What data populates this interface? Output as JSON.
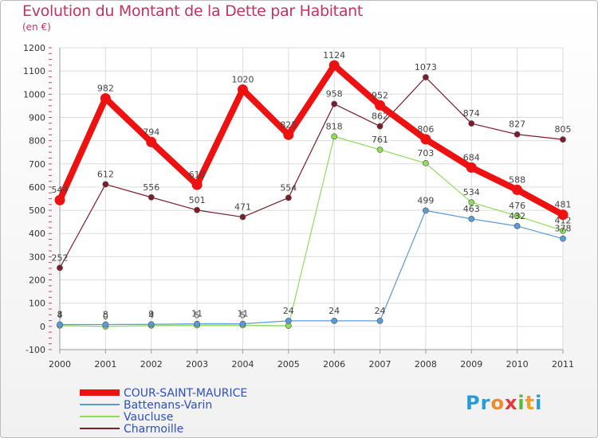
{
  "title": "Evolution du Montant de la Dette par Habitant",
  "subtitle": "(en €)",
  "logo": {
    "letters": [
      "P",
      "r",
      "o",
      "x",
      "i",
      "t",
      "i"
    ],
    "colors": [
      "#2a9ad8",
      "#2a9ad8",
      "#ef8a2b",
      "#e33b3b",
      "#5cb83c",
      "#f0a020",
      "#2a9ad8"
    ]
  },
  "chart_data": {
    "type": "line",
    "x": [
      "2000",
      "2001",
      "2002",
      "2003",
      "2004",
      "2005",
      "2006",
      "2007",
      "2008",
      "2009",
      "2010",
      "2011"
    ],
    "ylim": [
      -100,
      1200
    ],
    "yticks": [
      -100,
      0,
      100,
      200,
      300,
      400,
      500,
      600,
      700,
      800,
      900,
      1000,
      1100,
      1200
    ],
    "grid": true,
    "legend_position": "bottom-left",
    "series": [
      {
        "name": "Charmoille",
        "color": "#7b1d2a",
        "values": [
          252,
          612,
          556,
          501,
          471,
          554,
          958,
          862,
          1073,
          874,
          827,
          805
        ],
        "labels": [
          "252",
          "612",
          "556",
          "501",
          "471",
          "554",
          "958",
          "862",
          "1073",
          "874",
          "827",
          "805"
        ]
      },
      {
        "name": "Vaucluse",
        "color": "#8fdc5a",
        "values": [
          4,
          0,
          4,
          5,
          5,
          3,
          818,
          761,
          703,
          534,
          476,
          412
        ],
        "labels": [
          "4",
          "0",
          "4",
          "5",
          "5",
          "",
          "818",
          "761",
          "703",
          "534",
          "476",
          "412"
        ]
      },
      {
        "name": "Battenans-Varin",
        "color": "#5b9bd5",
        "values": [
          8,
          8,
          9,
          11,
          11,
          24,
          24,
          24,
          499,
          463,
          432,
          378
        ],
        "labels": [
          "8",
          "8",
          "9",
          "11",
          "11",
          "24",
          "24",
          "24",
          "499",
          "463",
          "432",
          "378"
        ]
      },
      {
        "name": "COUR-SAINT-MAURICE",
        "color": "#ee1111",
        "values": [
          544,
          982,
          794,
          610,
          1020,
          825,
          1124,
          952,
          806,
          684,
          588,
          481
        ],
        "labels": [
          "544",
          "982",
          "794",
          "610",
          "1020",
          "825",
          "1124",
          "952",
          "806",
          "684",
          "588",
          "481"
        ]
      }
    ],
    "legend_order": [
      "COUR-SAINT-MAURICE",
      "Battenans-Varin",
      "Vaucluse",
      "Charmoille"
    ]
  }
}
